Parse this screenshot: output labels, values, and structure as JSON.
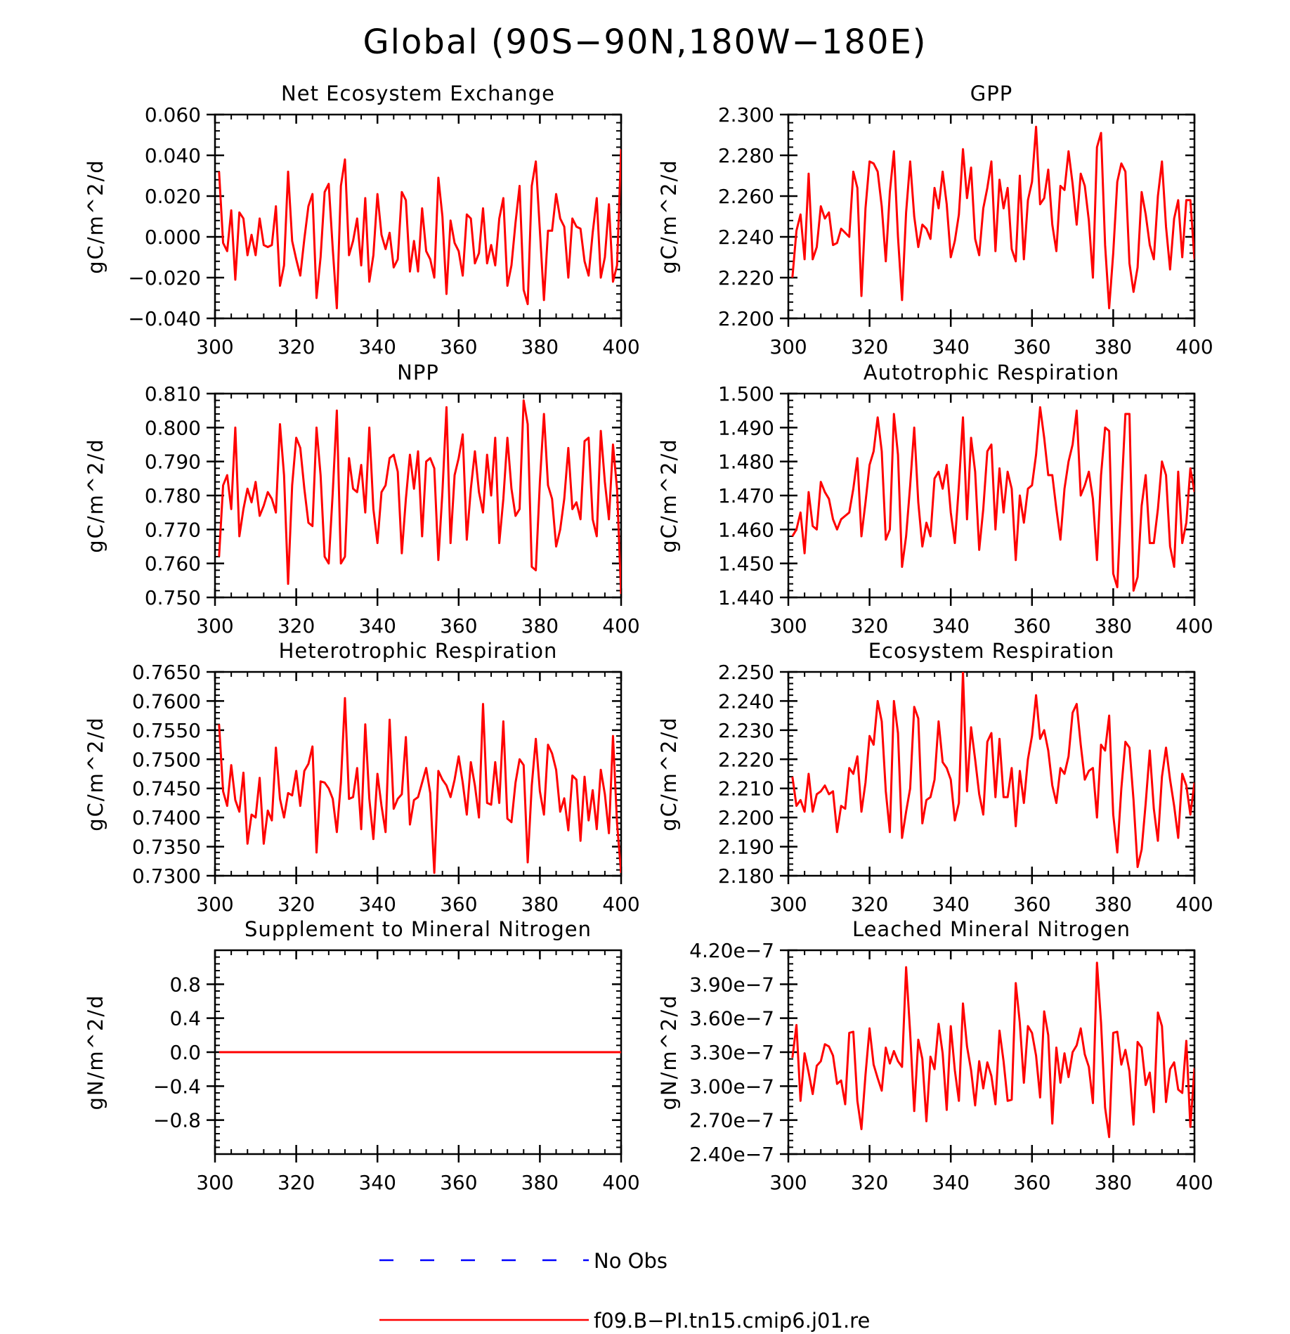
{
  "title": "Global (90S−90N,180W−180E)",
  "series_color": "#ff0000",
  "obs_color": "#0000ff",
  "legend": {
    "obs_label": "No Obs",
    "model_label": "f09.B−PI.tn15.cmip6.j01.re"
  },
  "chart_data": [
    {
      "type": "line",
      "title": "Net Ecosystem Exchange",
      "ylabel": "gC/m^2/d",
      "xlim": [
        300,
        400
      ],
      "ylim": [
        -0.04,
        0.06
      ],
      "xticks": [
        "300",
        "320",
        "340",
        "360",
        "380",
        "400"
      ],
      "yticks": [
        {
          "v": -0.04,
          "label": "−0.040"
        },
        {
          "v": -0.02,
          "label": "−0.020"
        },
        {
          "v": 0.0,
          "label": "0.000"
        },
        {
          "v": 0.02,
          "label": "0.020"
        },
        {
          "v": 0.04,
          "label": "0.040"
        },
        {
          "v": 0.06,
          "label": "0.060"
        }
      ],
      "x_start": 301,
      "y": [
        0.032,
        -0.003,
        -0.007,
        0.013,
        -0.021,
        0.012,
        0.009,
        -0.009,
        0.001,
        -0.009,
        0.009,
        -0.004,
        -0.005,
        -0.004,
        0.015,
        -0.024,
        -0.014,
        0.032,
        -0.002,
        -0.011,
        -0.019,
        -0.001,
        0.015,
        0.021,
        -0.03,
        -0.01,
        0.022,
        0.026,
        -0.006,
        -0.035,
        0.025,
        0.038,
        -0.009,
        -0.002,
        0.009,
        -0.014,
        0.019,
        -0.022,
        -0.009,
        0.021,
        0.001,
        -0.006,
        0.002,
        -0.015,
        -0.011,
        0.022,
        0.018,
        -0.017,
        -0.002,
        -0.017,
        0.014,
        -0.007,
        -0.011,
        -0.02,
        0.029,
        0.01,
        -0.028,
        0.008,
        -0.003,
        -0.007,
        -0.019,
        0.011,
        0.009,
        -0.013,
        -0.008,
        0.014,
        -0.013,
        -0.004,
        -0.014,
        0.009,
        0.019,
        -0.024,
        -0.014,
        0.007,
        0.025,
        -0.026,
        -0.033,
        0.025,
        0.037,
        0.003,
        -0.031,
        0.003,
        0.003,
        0.021,
        0.009,
        0.005,
        -0.02,
        0.009,
        0.005,
        0.004,
        -0.012,
        -0.019,
        0.002,
        0.019,
        -0.02,
        -0.01,
        0.016,
        -0.022,
        -0.014,
        0.043
      ]
    },
    {
      "type": "line",
      "title": "GPP",
      "ylabel": "gC/m^2/d",
      "xlim": [
        300,
        400
      ],
      "ylim": [
        2.2,
        2.3
      ],
      "xticks": [
        "300",
        "320",
        "340",
        "360",
        "380",
        "400"
      ],
      "yticks": [
        {
          "v": 2.2,
          "label": "2.200"
        },
        {
          "v": 2.22,
          "label": "2.220"
        },
        {
          "v": 2.24,
          "label": "2.240"
        },
        {
          "v": 2.26,
          "label": "2.260"
        },
        {
          "v": 2.28,
          "label": "2.280"
        },
        {
          "v": 2.3,
          "label": "2.300"
        }
      ],
      "x_start": 301,
      "y": [
        2.22,
        2.243,
        2.251,
        2.229,
        2.271,
        2.229,
        2.235,
        2.255,
        2.249,
        2.252,
        2.236,
        2.237,
        2.244,
        2.242,
        2.24,
        2.272,
        2.264,
        2.211,
        2.254,
        2.277,
        2.276,
        2.272,
        2.255,
        2.228,
        2.262,
        2.282,
        2.24,
        2.209,
        2.252,
        2.277,
        2.25,
        2.235,
        2.246,
        2.244,
        2.239,
        2.264,
        2.254,
        2.272,
        2.256,
        2.23,
        2.238,
        2.251,
        2.283,
        2.259,
        2.274,
        2.239,
        2.231,
        2.254,
        2.264,
        2.277,
        2.233,
        2.268,
        2.254,
        2.264,
        2.234,
        2.228,
        2.27,
        2.229,
        2.258,
        2.267,
        2.294,
        2.256,
        2.259,
        2.273,
        2.246,
        2.233,
        2.265,
        2.263,
        2.282,
        2.266,
        2.246,
        2.271,
        2.265,
        2.248,
        2.22,
        2.284,
        2.291,
        2.236,
        2.205,
        2.232,
        2.267,
        2.276,
        2.272,
        2.227,
        2.213,
        2.225,
        2.262,
        2.251,
        2.236,
        2.229,
        2.26,
        2.277,
        2.245,
        2.224,
        2.249,
        2.258,
        2.23,
        2.258,
        2.258,
        2.229
      ]
    },
    {
      "type": "line",
      "title": "NPP",
      "ylabel": "gC/m^2/d",
      "xlim": [
        300,
        400
      ],
      "ylim": [
        0.75,
        0.81
      ],
      "xticks": [
        "300",
        "320",
        "340",
        "360",
        "380",
        "400"
      ],
      "yticks": [
        {
          "v": 0.75,
          "label": "0.750"
        },
        {
          "v": 0.76,
          "label": "0.760"
        },
        {
          "v": 0.77,
          "label": "0.770"
        },
        {
          "v": 0.78,
          "label": "0.780"
        },
        {
          "v": 0.79,
          "label": "0.790"
        },
        {
          "v": 0.8,
          "label": "0.800"
        },
        {
          "v": 0.81,
          "label": "0.810"
        }
      ],
      "x_start": 301,
      "y": [
        0.762,
        0.783,
        0.786,
        0.776,
        0.8,
        0.768,
        0.776,
        0.782,
        0.778,
        0.784,
        0.774,
        0.777,
        0.781,
        0.779,
        0.775,
        0.801,
        0.786,
        0.754,
        0.783,
        0.797,
        0.794,
        0.782,
        0.772,
        0.771,
        0.8,
        0.786,
        0.762,
        0.76,
        0.781,
        0.805,
        0.76,
        0.762,
        0.791,
        0.782,
        0.781,
        0.789,
        0.775,
        0.8,
        0.776,
        0.766,
        0.781,
        0.783,
        0.791,
        0.792,
        0.787,
        0.763,
        0.779,
        0.792,
        0.782,
        0.793,
        0.768,
        0.79,
        0.791,
        0.788,
        0.761,
        0.781,
        0.806,
        0.766,
        0.786,
        0.791,
        0.798,
        0.767,
        0.782,
        0.793,
        0.781,
        0.775,
        0.792,
        0.78,
        0.797,
        0.766,
        0.779,
        0.797,
        0.782,
        0.774,
        0.776,
        0.808,
        0.801,
        0.759,
        0.758,
        0.784,
        0.804,
        0.783,
        0.779,
        0.765,
        0.77,
        0.779,
        0.794,
        0.776,
        0.778,
        0.773,
        0.796,
        0.797,
        0.773,
        0.768,
        0.799,
        0.784,
        0.773,
        0.795,
        0.782,
        0.751
      ]
    },
    {
      "type": "line",
      "title": "Autotrophic Respiration",
      "ylabel": "gC/m^2/d",
      "xlim": [
        300,
        400
      ],
      "ylim": [
        1.44,
        1.5
      ],
      "xticks": [
        "300",
        "320",
        "340",
        "360",
        "380",
        "400"
      ],
      "yticks": [
        {
          "v": 1.44,
          "label": "1.440"
        },
        {
          "v": 1.45,
          "label": "1.450"
        },
        {
          "v": 1.46,
          "label": "1.460"
        },
        {
          "v": 1.47,
          "label": "1.470"
        },
        {
          "v": 1.48,
          "label": "1.480"
        },
        {
          "v": 1.49,
          "label": "1.490"
        },
        {
          "v": 1.5,
          "label": "1.500"
        }
      ],
      "x_start": 301,
      "y": [
        1.458,
        1.46,
        1.465,
        1.453,
        1.471,
        1.461,
        1.46,
        1.474,
        1.471,
        1.469,
        1.463,
        1.46,
        1.463,
        1.464,
        1.465,
        1.472,
        1.481,
        1.458,
        1.468,
        1.479,
        1.483,
        1.493,
        1.483,
        1.457,
        1.46,
        1.494,
        1.482,
        1.449,
        1.458,
        1.473,
        1.49,
        1.468,
        1.455,
        1.462,
        1.458,
        1.475,
        1.477,
        1.472,
        1.479,
        1.465,
        1.456,
        1.473,
        1.493,
        1.463,
        1.487,
        1.477,
        1.454,
        1.466,
        1.483,
        1.485,
        1.46,
        1.478,
        1.465,
        1.477,
        1.472,
        1.451,
        1.47,
        1.462,
        1.472,
        1.473,
        1.482,
        1.496,
        1.487,
        1.476,
        1.476,
        1.466,
        1.457,
        1.472,
        1.48,
        1.485,
        1.495,
        1.47,
        1.473,
        1.477,
        1.469,
        1.451,
        1.476,
        1.49,
        1.489,
        1.447,
        1.443,
        1.47,
        1.494,
        1.494,
        1.442,
        1.446,
        1.467,
        1.476,
        1.456,
        1.456,
        1.466,
        1.48,
        1.476,
        1.455,
        1.449,
        1.477,
        1.456,
        1.462,
        1.478,
        1.471
      ]
    },
    {
      "type": "line",
      "title": "Heterotrophic Respiration",
      "ylabel": "gC/m^2/d",
      "xlim": [
        300,
        400
      ],
      "ylim": [
        0.73,
        0.765
      ],
      "xticks": [
        "300",
        "320",
        "340",
        "360",
        "380",
        "400"
      ],
      "yticks": [
        {
          "v": 0.73,
          "label": "0.7300"
        },
        {
          "v": 0.735,
          "label": "0.7350"
        },
        {
          "v": 0.74,
          "label": "0.7400"
        },
        {
          "v": 0.745,
          "label": "0.7450"
        },
        {
          "v": 0.75,
          "label": "0.7500"
        },
        {
          "v": 0.755,
          "label": "0.7550"
        },
        {
          "v": 0.76,
          "label": "0.7600"
        },
        {
          "v": 0.765,
          "label": "0.7650"
        }
      ],
      "x_start": 301,
      "y": [
        0.756,
        0.7445,
        0.742,
        0.749,
        0.743,
        0.741,
        0.7477,
        0.7355,
        0.7405,
        0.74,
        0.7468,
        0.7355,
        0.7412,
        0.7395,
        0.752,
        0.7432,
        0.74,
        0.7442,
        0.7438,
        0.748,
        0.742,
        0.748,
        0.7492,
        0.7522,
        0.734,
        0.7462,
        0.746,
        0.745,
        0.7432,
        0.7375,
        0.746,
        0.7605,
        0.7432,
        0.7435,
        0.7485,
        0.738,
        0.756,
        0.7432,
        0.7363,
        0.7475,
        0.742,
        0.7375,
        0.7568,
        0.7415,
        0.7432,
        0.744,
        0.7538,
        0.7388,
        0.743,
        0.7435,
        0.746,
        0.7485,
        0.7442,
        0.7305,
        0.748,
        0.7465,
        0.7455,
        0.7435,
        0.7465,
        0.7505,
        0.746,
        0.7405,
        0.7495,
        0.7455,
        0.74,
        0.7595,
        0.7425,
        0.7422,
        0.7495,
        0.7425,
        0.7565,
        0.7398,
        0.7392,
        0.746,
        0.75,
        0.749,
        0.7323,
        0.7455,
        0.7535,
        0.7445,
        0.7405,
        0.7525,
        0.751,
        0.7482,
        0.741,
        0.7433,
        0.7378,
        0.7472,
        0.7465,
        0.736,
        0.747,
        0.7395,
        0.7447,
        0.738,
        0.7482,
        0.744,
        0.7373,
        0.754,
        0.739,
        0.7305
      ]
    },
    {
      "type": "line",
      "title": "Ecosystem Respiration",
      "ylabel": "gC/m^2/d",
      "xlim": [
        300,
        400
      ],
      "ylim": [
        2.18,
        2.25
      ],
      "xticks": [
        "300",
        "320",
        "340",
        "360",
        "380",
        "400"
      ],
      "yticks": [
        {
          "v": 2.18,
          "label": "2.180"
        },
        {
          "v": 2.19,
          "label": "2.190"
        },
        {
          "v": 2.2,
          "label": "2.200"
        },
        {
          "v": 2.21,
          "label": "2.210"
        },
        {
          "v": 2.22,
          "label": "2.220"
        },
        {
          "v": 2.23,
          "label": "2.230"
        },
        {
          "v": 2.24,
          "label": "2.240"
        },
        {
          "v": 2.25,
          "label": "2.250"
        }
      ],
      "x_start": 301,
      "y": [
        2.214,
        2.204,
        2.206,
        2.202,
        2.215,
        2.202,
        2.208,
        2.209,
        2.211,
        2.208,
        2.209,
        2.195,
        2.204,
        2.203,
        2.217,
        2.215,
        2.221,
        2.202,
        2.212,
        2.228,
        2.225,
        2.24,
        2.233,
        2.209,
        2.195,
        2.24,
        2.229,
        2.193,
        2.202,
        2.21,
        2.238,
        2.234,
        2.198,
        2.206,
        2.207,
        2.213,
        2.233,
        2.219,
        2.217,
        2.213,
        2.199,
        2.205,
        2.25,
        2.209,
        2.231,
        2.22,
        2.208,
        2.201,
        2.226,
        2.229,
        2.207,
        2.227,
        2.207,
        2.207,
        2.217,
        2.197,
        2.216,
        2.205,
        2.22,
        2.228,
        2.242,
        2.227,
        2.23,
        2.223,
        2.211,
        2.205,
        2.217,
        2.215,
        2.221,
        2.236,
        2.239,
        2.225,
        2.213,
        2.216,
        2.217,
        2.2,
        2.225,
        2.223,
        2.235,
        2.201,
        2.188,
        2.21,
        2.226,
        2.224,
        2.206,
        2.183,
        2.189,
        2.205,
        2.223,
        2.203,
        2.192,
        2.214,
        2.224,
        2.213,
        2.204,
        2.193,
        2.215,
        2.211,
        2.201,
        2.212
      ]
    },
    {
      "type": "line",
      "title": "Supplement to Mineral Nitrogen",
      "ylabel": "gN/m^2/d",
      "xlim": [
        300,
        400
      ],
      "ylim": [
        -1.2,
        1.2
      ],
      "xticks": [
        "300",
        "320",
        "340",
        "360",
        "380",
        "400"
      ],
      "yticks": [
        {
          "v": -0.8,
          "label": "−0.8"
        },
        {
          "v": -0.4,
          "label": "−0.4"
        },
        {
          "v": 0.0,
          "label": "0.0"
        },
        {
          "v": 0.4,
          "label": "0.4"
        },
        {
          "v": 0.8,
          "label": "0.8"
        }
      ],
      "x_start": 301,
      "y": [
        0,
        0,
        0,
        0,
        0,
        0,
        0,
        0,
        0,
        0,
        0,
        0,
        0,
        0,
        0,
        0,
        0,
        0,
        0,
        0,
        0,
        0,
        0,
        0,
        0,
        0,
        0,
        0,
        0,
        0,
        0,
        0,
        0,
        0,
        0,
        0,
        0,
        0,
        0,
        0,
        0,
        0,
        0,
        0,
        0,
        0,
        0,
        0,
        0,
        0,
        0,
        0,
        0,
        0,
        0,
        0,
        0,
        0,
        0,
        0,
        0,
        0,
        0,
        0,
        0,
        0,
        0,
        0,
        0,
        0,
        0,
        0,
        0,
        0,
        0,
        0,
        0,
        0,
        0,
        0,
        0,
        0,
        0,
        0,
        0,
        0,
        0,
        0,
        0,
        0,
        0,
        0,
        0,
        0,
        0,
        0,
        0,
        0,
        0,
        0
      ]
    },
    {
      "type": "line",
      "title": "Leached Mineral Nitrogen",
      "ylabel": "gN/m^2/d",
      "xlim": [
        300,
        400
      ],
      "ylim": [
        2.4e-07,
        4.2e-07
      ],
      "xticks": [
        "300",
        "320",
        "340",
        "360",
        "380",
        "400"
      ],
      "yticks": [
        {
          "v": 2.4e-07,
          "label": "2.40e−7"
        },
        {
          "v": 2.7e-07,
          "label": "2.70e−7"
        },
        {
          "v": 3e-07,
          "label": "3.00e−7"
        },
        {
          "v": 3.3e-07,
          "label": "3.30e−7"
        },
        {
          "v": 3.6e-07,
          "label": "3.60e−7"
        },
        {
          "v": 3.9e-07,
          "label": "3.90e−7"
        },
        {
          "v": 4.2e-07,
          "label": "4.20e−7"
        }
      ],
      "x_start": 301,
      "y": [
        3.25e-07,
        3.54e-07,
        2.87e-07,
        3.29e-07,
        3.12e-07,
        2.93e-07,
        3.18e-07,
        3.22e-07,
        3.37e-07,
        3.35e-07,
        3.27e-07,
        3.02e-07,
        3.05e-07,
        2.84e-07,
        3.47e-07,
        3.48e-07,
        2.87e-07,
        2.62e-07,
        3.1e-07,
        3.51e-07,
        3.19e-07,
        3.07e-07,
        2.96e-07,
        3.34e-07,
        3.2e-07,
        3.31e-07,
        3.22e-07,
        3.17e-07,
        4.05e-07,
        3.47e-07,
        2.78e-07,
        3.41e-07,
        3.24e-07,
        2.69e-07,
        3.26e-07,
        3.15e-07,
        3.55e-07,
        3.29e-07,
        2.79e-07,
        3.53e-07,
        3.14e-07,
        2.87e-07,
        3.73e-07,
        3.35e-07,
        3.14e-07,
        2.83e-07,
        3.22e-07,
        2.98e-07,
        3.21e-07,
        3.09e-07,
        2.84e-07,
        3.49e-07,
        3.22e-07,
        2.87e-07,
        2.88e-07,
        3.91e-07,
        3.56e-07,
        3.03e-07,
        3.53e-07,
        3.47e-07,
        3.27e-07,
        2.9e-07,
        3.66e-07,
        3.45e-07,
        2.67e-07,
        3.34e-07,
        3.03e-07,
        3.29e-07,
        3.08e-07,
        3.3e-07,
        3.36e-07,
        3.51e-07,
        3.28e-07,
        3.17e-07,
        2.85e-07,
        4.09e-07,
        3.56e-07,
        2.81e-07,
        2.55e-07,
        3.47e-07,
        3.48e-07,
        3.19e-07,
        3.32e-07,
        3.13e-07,
        2.66e-07,
        3.39e-07,
        3.34e-07,
        3.01e-07,
        3.12e-07,
        2.77e-07,
        3.65e-07,
        3.53e-07,
        2.86e-07,
        3.15e-07,
        3.21e-07,
        2.97e-07,
        2.94e-07,
        3.4e-07,
        2.64e-07,
        3.16e-07
      ]
    }
  ]
}
